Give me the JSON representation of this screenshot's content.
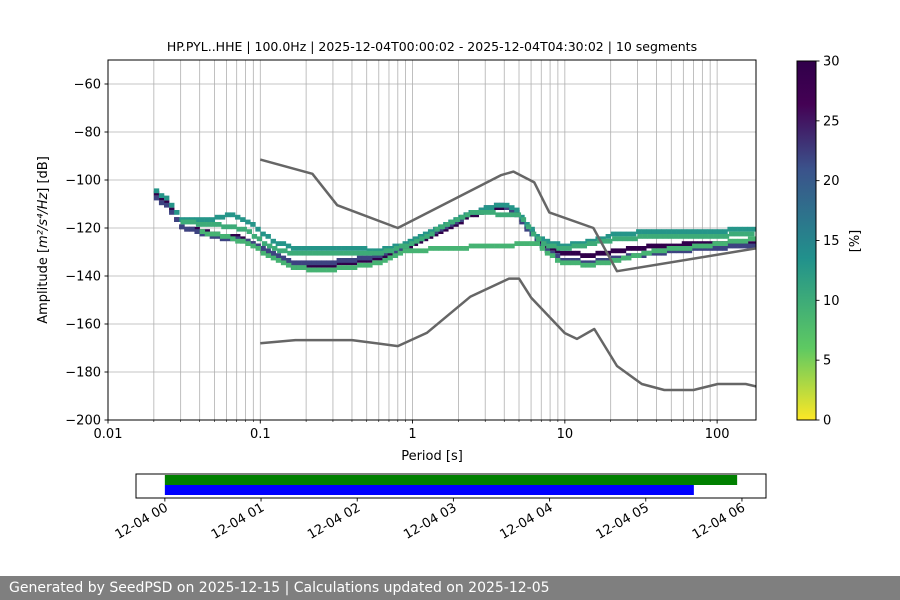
{
  "chart_data": [
    {
      "type": "heatmap",
      "title": "HP.PYL..HHE | 100.0Hz | 2025-12-04T00:00:02 - 2025-12-04T04:30:02 | 10 segments",
      "xlabel": "Period [s]",
      "ylabel_prefix": "Amplitude [",
      "ylabel_math": "m²/s⁴/Hz",
      "ylabel_suffix": "] [dB]",
      "xscale": "log",
      "xlim": [
        0.01,
        180
      ],
      "ylim": [
        -200,
        -50
      ],
      "xtick_labels": [
        {
          "value": 0.01,
          "label": "0.01"
        },
        {
          "value": 0.1,
          "label": "0.1"
        },
        {
          "value": 1,
          "label": "1"
        },
        {
          "value": 10,
          "label": "10"
        },
        {
          "value": 100,
          "label": "100"
        }
      ],
      "yticks": [
        -200,
        -180,
        -160,
        -140,
        -120,
        -100,
        -80,
        -60
      ],
      "ytick_labels": [
        "−200",
        "−180",
        "−160",
        "−140",
        "−120",
        "−100",
        "−80",
        "−60"
      ],
      "grid": true,
      "colorbar": {
        "label": "[%]",
        "range": [
          0,
          30
        ],
        "ticks": [
          0,
          5,
          10,
          15,
          20,
          25,
          30
        ],
        "tick_labels": [
          "0",
          "5",
          "10",
          "15",
          "20",
          "25",
          "30"
        ],
        "colormap_reversed": "viridis",
        "stops": [
          "#fde725",
          "#5ec962",
          "#21918c",
          "#3b528b",
          "#440154",
          "#30004a"
        ]
      },
      "nhnm": {
        "name": "New High Noise Model",
        "color": "#666666",
        "points": [
          [
            0.1,
            -91.5
          ],
          [
            0.22,
            -97.4
          ],
          [
            0.32,
            -110.5
          ],
          [
            0.8,
            -120
          ],
          [
            3.8,
            -98
          ],
          [
            4.6,
            -96.5
          ],
          [
            6.3,
            -101
          ],
          [
            7.9,
            -113.5
          ],
          [
            15.4,
            -120
          ],
          [
            22,
            -138
          ],
          [
            180,
            -128.5
          ]
        ]
      },
      "nlnm": {
        "name": "New Low Noise Model",
        "color": "#666666",
        "points": [
          [
            0.1,
            -168
          ],
          [
            0.17,
            -166.7
          ],
          [
            0.4,
            -166.7
          ],
          [
            0.8,
            -169.2
          ],
          [
            1.24,
            -163.7
          ],
          [
            2.4,
            -148.6
          ],
          [
            4.3,
            -141.1
          ],
          [
            5,
            -141.1
          ],
          [
            6,
            -149
          ],
          [
            10,
            -163.8
          ],
          [
            12,
            -166.2
          ],
          [
            15.6,
            -162.1
          ],
          [
            22,
            -177.5
          ],
          [
            32,
            -185
          ],
          [
            45,
            -187.5
          ],
          [
            70,
            -187.5
          ],
          [
            101,
            -185
          ],
          [
            154,
            -185
          ],
          [
            180,
            -186
          ]
        ]
      },
      "psd_curves": [
        {
          "name": "dominant mode",
          "percent": 30,
          "points": [
            [
              0.02,
              -104
            ],
            [
              0.025,
              -110
            ],
            [
              0.03,
              -119
            ],
            [
              0.05,
              -122
            ],
            [
              0.08,
              -124
            ],
            [
              0.12,
              -131
            ],
            [
              0.17,
              -136
            ],
            [
              0.25,
              -135
            ],
            [
              0.4,
              -134
            ],
            [
              0.6,
              -132
            ],
            [
              0.9,
              -128
            ],
            [
              1.5,
              -121
            ],
            [
              2.5,
              -114
            ],
            [
              3.6,
              -111
            ],
            [
              4.2,
              -111
            ],
            [
              5,
              -114
            ],
            [
              6.5,
              -124
            ],
            [
              8,
              -128
            ],
            [
              10,
              -130
            ],
            [
              15,
              -131
            ],
            [
              22,
              -129
            ],
            [
              40,
              -127
            ],
            [
              80,
              -126
            ],
            [
              180,
              -126
            ]
          ]
        },
        {
          "name": "secondary mode",
          "percent": 22,
          "points": [
            [
              0.02,
              -106
            ],
            [
              0.025,
              -111
            ],
            [
              0.03,
              -119
            ],
            [
              0.05,
              -123
            ],
            [
              0.08,
              -125
            ],
            [
              0.12,
              -130
            ],
            [
              0.17,
              -134
            ],
            [
              0.25,
              -134
            ],
            [
              0.4,
              -133
            ],
            [
              0.6,
              -131
            ],
            [
              0.9,
              -127
            ],
            [
              1.5,
              -120
            ],
            [
              2.5,
              -113
            ],
            [
              3.6,
              -110
            ],
            [
              4.2,
              -111
            ],
            [
              5,
              -115
            ],
            [
              6.5,
              -125
            ],
            [
              8,
              -130
            ],
            [
              10,
              -133
            ],
            [
              15,
              -134
            ],
            [
              22,
              -132
            ],
            [
              40,
              -130
            ],
            [
              80,
              -128
            ],
            [
              180,
              -127
            ]
          ]
        },
        {
          "name": "upper band",
          "percent": 13,
          "points": [
            [
              0.02,
              -103
            ],
            [
              0.025,
              -108
            ],
            [
              0.03,
              -116
            ],
            [
              0.045,
              -116
            ],
            [
              0.065,
              -114
            ],
            [
              0.09,
              -118
            ],
            [
              0.12,
              -125
            ],
            [
              0.17,
              -128
            ],
            [
              0.25,
              -128
            ],
            [
              0.4,
              -128
            ],
            [
              0.6,
              -129
            ],
            [
              0.9,
              -126
            ],
            [
              1.5,
              -119
            ],
            [
              2.5,
              -113
            ],
            [
              3.6,
              -110
            ],
            [
              4.2,
              -110
            ],
            [
              5,
              -113
            ],
            [
              6.5,
              -123
            ],
            [
              8,
              -126
            ],
            [
              10,
              -127
            ],
            [
              15,
              -125
            ],
            [
              22,
              -122
            ],
            [
              40,
              -121
            ],
            [
              80,
              -121
            ],
            [
              180,
              -120
            ]
          ]
        },
        {
          "name": "mid band",
          "percent": 10,
          "points": [
            [
              0.03,
              -117
            ],
            [
              0.05,
              -118
            ],
            [
              0.08,
              -120
            ],
            [
              0.12,
              -128
            ],
            [
              0.17,
              -130
            ],
            [
              0.25,
              -130
            ],
            [
              0.4,
              -130
            ],
            [
              0.6,
              -130
            ],
            [
              0.9,
              -127
            ],
            [
              1.5,
              -120
            ],
            [
              2.5,
              -113
            ],
            [
              5,
              -114
            ],
            [
              6.5,
              -124
            ],
            [
              8,
              -127
            ],
            [
              10,
              -128
            ],
            [
              15,
              -126
            ],
            [
              22,
              -124
            ],
            [
              40,
              -123
            ],
            [
              80,
              -123
            ],
            [
              180,
              -122
            ]
          ]
        },
        {
          "name": "lower band",
          "percent": 9,
          "points": [
            [
              0.04,
              -121
            ],
            [
              0.06,
              -123
            ],
            [
              0.09,
              -127
            ],
            [
              0.12,
              -132
            ],
            [
              0.17,
              -136
            ],
            [
              0.25,
              -137
            ],
            [
              0.4,
              -136
            ],
            [
              0.6,
              -134
            ],
            [
              0.9,
              -129
            ],
            [
              6.5,
              -126
            ],
            [
              8,
              -131
            ],
            [
              10,
              -134
            ],
            [
              15,
              -135
            ],
            [
              22,
              -133
            ],
            [
              40,
              -129
            ],
            [
              80,
              -127
            ],
            [
              180,
              -124
            ]
          ]
        }
      ]
    },
    {
      "type": "timeline",
      "x_tick_labels": [
        "12-04 00",
        "12-04 01",
        "12-04 02",
        "12-04 03",
        "12-04 04",
        "12-04 05",
        "12-04 06"
      ],
      "x_tick_hours": [
        0,
        1,
        2,
        3,
        4,
        5,
        6
      ],
      "xlim_hours": [
        -0.3,
        6.25
      ],
      "series": [
        {
          "name": "green bar",
          "color": "#008000",
          "start_hours": 0,
          "end_hours": 5.95
        },
        {
          "name": "blue bar",
          "color": "#0000ff",
          "start_hours": 0,
          "end_hours": 5.5
        }
      ]
    }
  ],
  "footer": {
    "text": "Generated by SeedPSD on 2025-12-15 | Calculations updated on 2025-12-05"
  }
}
